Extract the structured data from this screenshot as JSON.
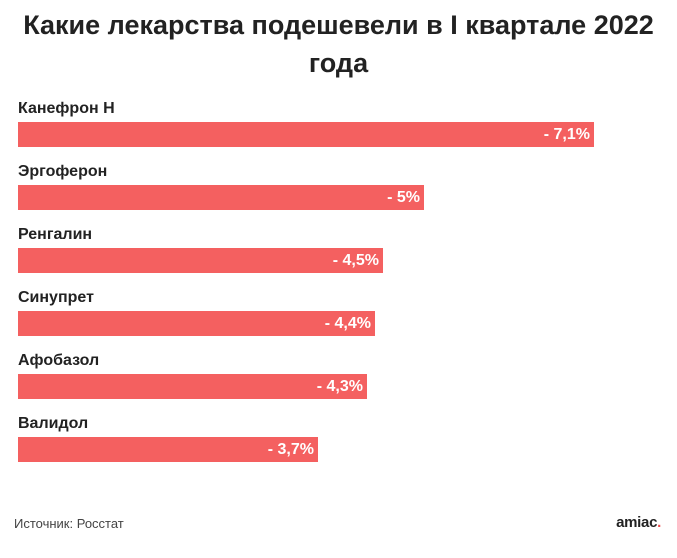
{
  "chart_data": {
    "type": "bar",
    "orientation": "horizontal",
    "title": "Какие лекарства подешевели в I квартале 2022 года",
    "categories": [
      "Канефрон Н",
      "Эргоферон",
      "Ренгалин",
      "Синупрет",
      "Афобазол",
      "Валидол"
    ],
    "values": [
      7.1,
      5,
      4.5,
      4.4,
      4.3,
      3.7
    ],
    "value_labels": [
      "- 7,1%",
      "- 5%",
      "- 4,5%",
      "- 4,4%",
      "- 4,3%",
      "- 3,7%"
    ],
    "xlim": [
      0,
      7.1
    ],
    "grid": false,
    "bar_color": "#f46060"
  },
  "source": "Источник: Росстат",
  "logo": {
    "text": "amiac",
    "dot": "."
  }
}
